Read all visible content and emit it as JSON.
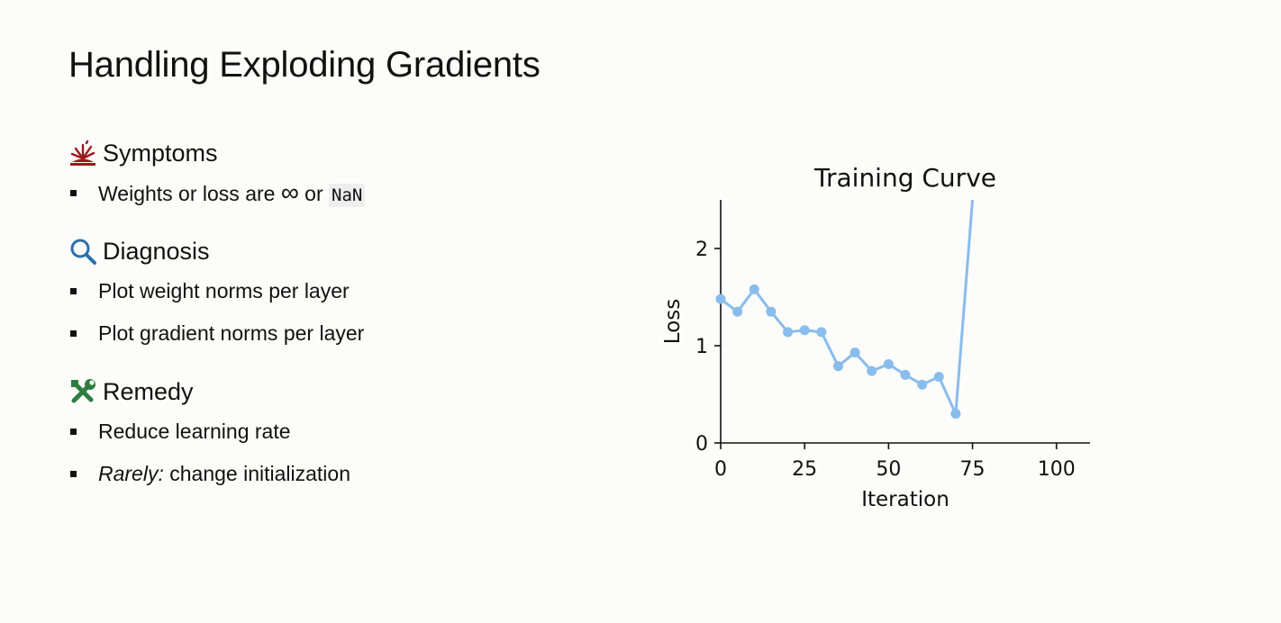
{
  "slide": {
    "title": "Handling Exploding Gradients",
    "sections": [
      {
        "heading": "Symptoms",
        "icon": "explosion-icon",
        "icon_color": "#9b1b1b",
        "bullets": [
          {
            "text_before": "Weights or loss are ",
            "symbol": "∞",
            "text_middle": " or ",
            "code": "NaN"
          }
        ]
      },
      {
        "heading": "Diagnosis",
        "icon": "magnifier-icon",
        "icon_color": "#2c6fa8",
        "bullets": [
          {
            "text": "Plot weight norms per layer"
          },
          {
            "text": "Plot gradient norms per layer"
          }
        ]
      },
      {
        "heading": "Remedy",
        "icon": "tools-icon",
        "icon_color": "#2e7d3e",
        "bullets": [
          {
            "text": "Reduce learning rate"
          },
          {
            "emphasis": "Rarely:",
            "text": " change initialization"
          }
        ]
      }
    ]
  },
  "chart_data": {
    "type": "line",
    "title": "Training Curve",
    "xlabel": "Iteration",
    "ylabel": "Loss",
    "xlim": [
      0,
      110
    ],
    "ylim": [
      0,
      2.5
    ],
    "xticks": [
      0,
      25,
      50,
      75,
      100
    ],
    "yticks": [
      0,
      1,
      2
    ],
    "grid": false,
    "line_color": "#89bdeb",
    "series": [
      {
        "x": [
          0,
          5,
          10,
          15,
          20,
          25,
          30,
          35,
          40,
          45,
          50,
          55,
          60,
          65,
          70
        ],
        "y": [
          1.48,
          1.35,
          1.58,
          1.35,
          1.14,
          1.16,
          1.14,
          0.79,
          0.93,
          0.74,
          0.81,
          0.7,
          0.6,
          0.68,
          0.3
        ]
      }
    ],
    "explosion_segment": {
      "x": [
        70,
        75
      ],
      "y": [
        0.3,
        2.5
      ]
    }
  }
}
